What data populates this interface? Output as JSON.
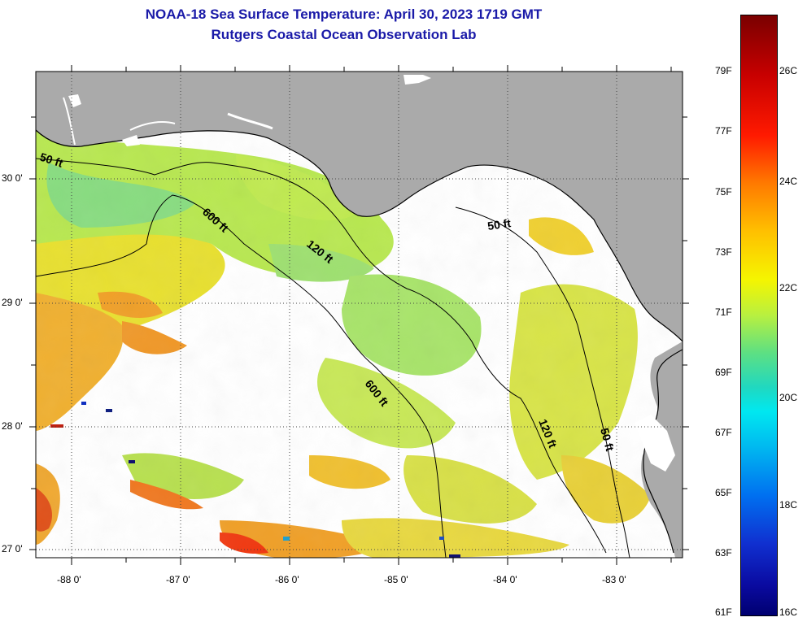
{
  "header": {
    "title_line1": "NOAA-18 Sea Surface Temperature:  April 30, 2023 1719 GMT",
    "title_line2": "Rutgers Coastal Ocean Observation Lab"
  },
  "map": {
    "lat_labels": [
      "30 0'",
      "29 0'",
      "28 0'",
      "27 0'"
    ],
    "lon_labels": [
      "-88 0'",
      "-87 0'",
      "-86 0'",
      "-85 0'",
      "-84 0'",
      "-83 0'"
    ],
    "contour_labels": {
      "c50_west": "50 ft",
      "c50_east": "50 ft",
      "c50_south": "50 ft",
      "c120_north": "120 ft",
      "c120_south": "120 ft",
      "c600_north": "600 ft",
      "c600_south": "600 ft"
    },
    "colors": {
      "land": "#aaaaaa",
      "cloud": "#ffffff",
      "warm_water": "#f0d838",
      "cool_water": "#9ee060",
      "hot_water": "#f09020"
    }
  },
  "colorbar": {
    "fahrenheit": [
      "79F",
      "77F",
      "75F",
      "73F",
      "71F",
      "69F",
      "67F",
      "65F",
      "63F",
      "61F"
    ],
    "celsius": [
      "26C",
      "24C",
      "22C",
      "20C",
      "18C",
      "16C"
    ]
  }
}
